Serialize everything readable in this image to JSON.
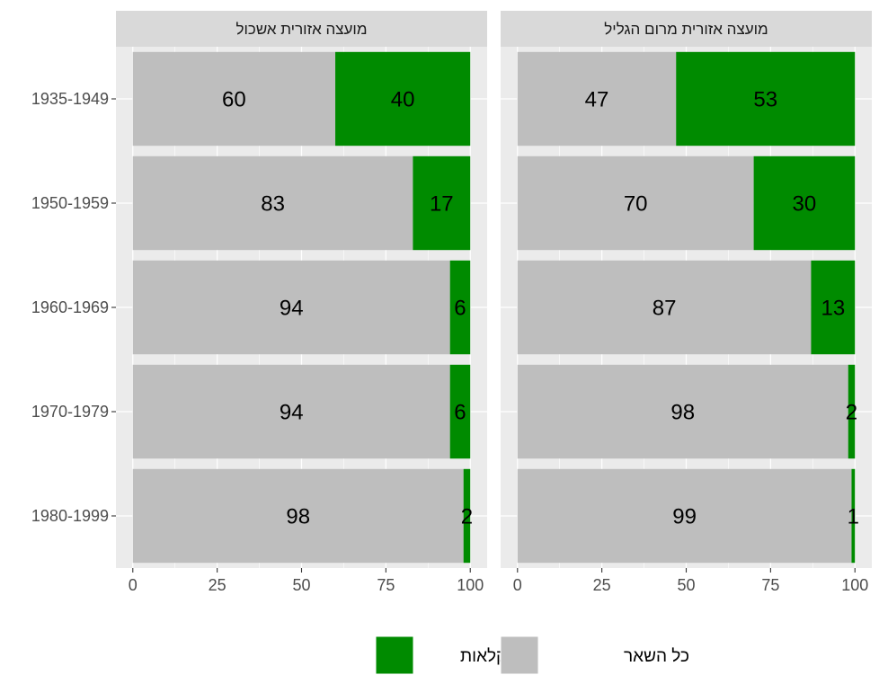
{
  "chart_data": {
    "type": "bar",
    "orientation": "horizontal",
    "stacked": true,
    "categories": [
      "1935-1949",
      "1950-1959",
      "1960-1969",
      "1970-1979",
      "1980-1999"
    ],
    "xlim": [
      0,
      100
    ],
    "x_ticks": [
      0,
      25,
      50,
      75,
      100
    ],
    "grid": true,
    "legend_position": "bottom",
    "colors": {
      "rest": "#bebebe",
      "agriculture": "#008b00",
      "panel_bg": "#ebebeb",
      "strip_bg": "#d9d9d9",
      "grid": "#ffffff"
    },
    "legend": [
      {
        "key": "agriculture",
        "label": "חקלאות"
      },
      {
        "key": "rest",
        "label": "כל השאר"
      }
    ],
    "panels": [
      {
        "title": "מועצה אזורית אשכול",
        "series": [
          {
            "key": "rest",
            "values": [
              60,
              83,
              94,
              94,
              98
            ]
          },
          {
            "key": "agriculture",
            "values": [
              40,
              17,
              6,
              6,
              2
            ]
          }
        ]
      },
      {
        "title": "מועצה אזורית מרום הגליל",
        "series": [
          {
            "key": "rest",
            "values": [
              47,
              70,
              87,
              98,
              99
            ]
          },
          {
            "key": "agriculture",
            "values": [
              53,
              30,
              13,
              2,
              1
            ]
          }
        ]
      }
    ]
  }
}
